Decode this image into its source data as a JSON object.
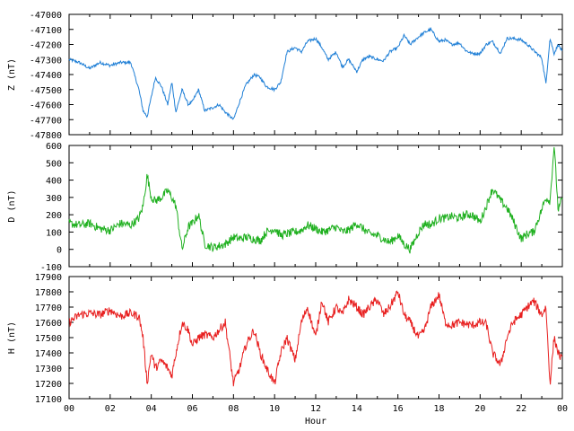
{
  "chart_data": [
    {
      "type": "line",
      "ylabel": "Z (nT)",
      "ylim": [
        -47800,
        -47000
      ],
      "yticks": [
        "-47000",
        "-47100",
        "-47200",
        "-47300",
        "-47400",
        "-47500",
        "-47600",
        "-47700",
        "-47800"
      ],
      "color": "#1f7fd6",
      "series": [
        {
          "x": [
            0,
            0.5,
            1,
            1.5,
            2,
            2.5,
            3,
            3.4,
            3.6,
            3.8,
            4.0,
            4.2,
            4.5,
            4.8,
            5.0,
            5.2,
            5.5,
            5.8,
            6.0,
            6.3,
            6.6,
            7.0,
            7.3,
            7.6,
            8.0,
            8.3,
            8.6,
            9.0,
            9.3,
            9.6,
            10.0,
            10.3,
            10.6,
            11.0,
            11.3,
            11.6,
            12.0,
            12.3,
            12.6,
            13.0,
            13.3,
            13.6,
            14.0,
            14.3,
            14.6,
            15.0,
            15.3,
            15.6,
            16.0,
            16.3,
            16.6,
            17.0,
            17.3,
            17.6,
            18.0,
            18.3,
            18.6,
            19.0,
            19.3,
            19.6,
            20.0,
            20.3,
            20.6,
            21.0,
            21.3,
            21.6,
            22.0,
            22.3,
            22.6,
            23.0,
            23.2,
            23.4,
            23.6,
            23.8,
            24.0
          ],
          "values": [
            -47300,
            -47320,
            -47360,
            -47320,
            -47340,
            -47320,
            -47320,
            -47500,
            -47640,
            -47680,
            -47550,
            -47420,
            -47480,
            -47600,
            -47450,
            -47650,
            -47500,
            -47600,
            -47580,
            -47500,
            -47640,
            -47620,
            -47600,
            -47650,
            -47700,
            -47580,
            -47470,
            -47400,
            -47420,
            -47480,
            -47500,
            -47450,
            -47250,
            -47220,
            -47250,
            -47180,
            -47160,
            -47220,
            -47300,
            -47250,
            -47350,
            -47300,
            -47380,
            -47300,
            -47280,
            -47300,
            -47310,
            -47250,
            -47220,
            -47140,
            -47200,
            -47150,
            -47120,
            -47100,
            -47180,
            -47170,
            -47200,
            -47190,
            -47240,
            -47260,
            -47260,
            -47200,
            -47180,
            -47260,
            -47160,
            -47160,
            -47170,
            -47200,
            -47240,
            -47290,
            -47460,
            -47160,
            -47260,
            -47200,
            -47250
          ]
        }
      ]
    },
    {
      "type": "line",
      "ylabel": "D (nT)",
      "ylim": [
        -100,
        600
      ],
      "yticks": [
        "600",
        "500",
        "400",
        "300",
        "200",
        "100",
        "0",
        "-100"
      ],
      "color": "#1fb01f",
      "series": [
        {
          "x": [
            0,
            0.5,
            1,
            1.5,
            2,
            2.5,
            3,
            3.4,
            3.6,
            3.8,
            4.0,
            4.2,
            4.5,
            4.8,
            5.0,
            5.2,
            5.5,
            5.8,
            6.0,
            6.3,
            6.6,
            7.0,
            7.3,
            7.6,
            8.0,
            8.3,
            8.6,
            9.0,
            9.3,
            9.6,
            10.0,
            10.3,
            10.6,
            11.0,
            11.3,
            11.6,
            12.0,
            12.3,
            12.6,
            13.0,
            13.3,
            13.6,
            14.0,
            14.3,
            14.6,
            15.0,
            15.3,
            15.6,
            16.0,
            16.3,
            16.6,
            17.0,
            17.3,
            17.6,
            18.0,
            18.3,
            18.6,
            19.0,
            19.3,
            19.6,
            20.0,
            20.3,
            20.6,
            21.0,
            21.3,
            21.6,
            22.0,
            22.3,
            22.6,
            23.0,
            23.2,
            23.4,
            23.6,
            23.8,
            24.0
          ],
          "values": [
            150,
            140,
            150,
            120,
            110,
            150,
            140,
            180,
            250,
            430,
            300,
            280,
            300,
            340,
            300,
            250,
            0,
            130,
            150,
            200,
            30,
            10,
            20,
            30,
            70,
            60,
            70,
            60,
            50,
            100,
            120,
            80,
            90,
            100,
            110,
            140,
            120,
            100,
            110,
            130,
            100,
            110,
            150,
            120,
            90,
            80,
            60,
            40,
            80,
            30,
            0,
            100,
            150,
            140,
            180,
            180,
            190,
            180,
            200,
            200,
            160,
            250,
            350,
            280,
            240,
            170,
            60,
            90,
            100,
            230,
            300,
            280,
            600,
            220,
            300
          ]
        }
      ]
    },
    {
      "type": "line",
      "ylabel": "H (nT)",
      "xlabel": "Hour",
      "ylim": [
        17100,
        17900
      ],
      "yticks": [
        "17900",
        "17800",
        "17700",
        "17600",
        "17500",
        "17400",
        "17300",
        "17200",
        "17100"
      ],
      "xticks": [
        "00",
        "02",
        "04",
        "06",
        "08",
        "10",
        "12",
        "14",
        "16",
        "18",
        "20",
        "22",
        "00"
      ],
      "color": "#e81f1f",
      "series": [
        {
          "x": [
            0,
            0.5,
            1,
            1.5,
            2,
            2.5,
            3,
            3.4,
            3.6,
            3.8,
            4.0,
            4.2,
            4.5,
            4.8,
            5.0,
            5.2,
            5.5,
            5.8,
            6.0,
            6.3,
            6.6,
            7.0,
            7.3,
            7.6,
            8.0,
            8.3,
            8.6,
            9.0,
            9.3,
            9.6,
            10.0,
            10.3,
            10.6,
            11.0,
            11.3,
            11.6,
            12.0,
            12.3,
            12.6,
            13.0,
            13.3,
            13.6,
            14.0,
            14.3,
            14.6,
            15.0,
            15.3,
            15.6,
            16.0,
            16.3,
            16.6,
            17.0,
            17.3,
            17.6,
            18.0,
            18.3,
            18.6,
            19.0,
            19.3,
            19.6,
            20.0,
            20.3,
            20.6,
            21.0,
            21.3,
            21.6,
            22.0,
            22.3,
            22.6,
            23.0,
            23.2,
            23.4,
            23.6,
            23.8,
            24.0
          ],
          "values": [
            17600,
            17650,
            17660,
            17650,
            17680,
            17640,
            17660,
            17640,
            17500,
            17200,
            17400,
            17300,
            17350,
            17300,
            17250,
            17400,
            17600,
            17550,
            17450,
            17500,
            17520,
            17500,
            17550,
            17600,
            17200,
            17300,
            17450,
            17550,
            17400,
            17300,
            17200,
            17400,
            17500,
            17350,
            17600,
            17700,
            17500,
            17750,
            17600,
            17700,
            17650,
            17750,
            17700,
            17650,
            17700,
            17750,
            17650,
            17700,
            17800,
            17650,
            17600,
            17500,
            17550,
            17700,
            17780,
            17600,
            17580,
            17600,
            17590,
            17580,
            17600,
            17590,
            17400,
            17320,
            17500,
            17600,
            17650,
            17700,
            17740,
            17650,
            17700,
            17200,
            17500,
            17400,
            17350
          ]
        }
      ]
    }
  ]
}
